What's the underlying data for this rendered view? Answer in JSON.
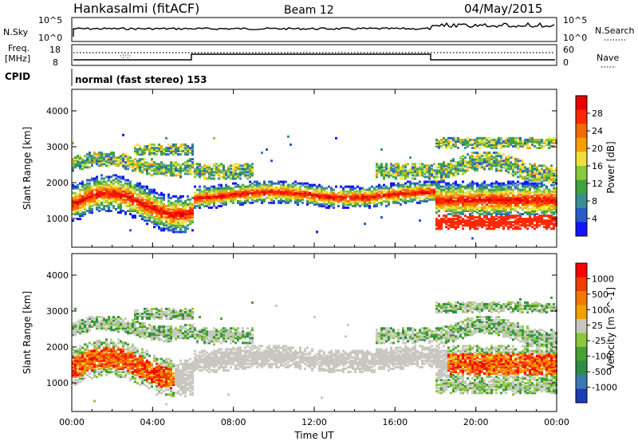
{
  "header": {
    "title": "Hankasalmi (fitACF)",
    "beam": "Beam 12",
    "date": "04/May/2015"
  },
  "noise_panel": {
    "left_label": "N.Sky",
    "right_label": "N.Search",
    "left_ticks": [
      "10^5",
      "10^0"
    ],
    "right_ticks": [
      "10^5",
      "10^0"
    ]
  },
  "freq_panel": {
    "left_label_1": "Freq.",
    "left_label_2": "[MHz]",
    "left_ticks": [
      "18",
      "8"
    ],
    "right_ticks": [
      "60",
      "0"
    ],
    "right_label": "Nave"
  },
  "cpid": {
    "label": "CPID",
    "mode": "normal (fast stereo) 153"
  },
  "chart_data": [
    {
      "type": "heatmap",
      "name": "power",
      "xlabel": "",
      "ylabel": "Slant Range [km]",
      "x_ticks": [
        "00:00",
        "04:00",
        "08:00",
        "12:00",
        "16:00",
        "20:00",
        "00:00"
      ],
      "y_ticks": [
        1000,
        2000,
        3000,
        4000
      ],
      "ylim": [
        200,
        4600
      ],
      "colorbar": {
        "label": "Power [dB]",
        "ticks": [
          "28",
          "24",
          "20",
          "16",
          "12",
          "8",
          "4"
        ],
        "colors": [
          "#1414ff",
          "#2a5cc9",
          "#3c8c96",
          "#3fa33f",
          "#8ac83c",
          "#f0e03c",
          "#f5a000",
          "#f56a00",
          "#ff2800",
          "#e60000"
        ]
      }
    },
    {
      "type": "heatmap",
      "name": "velocity",
      "xlabel": "Time UT",
      "ylabel": "Slant Range [km]",
      "x_ticks": [
        "00:00",
        "04:00",
        "08:00",
        "12:00",
        "16:00",
        "20:00",
        "00:00"
      ],
      "y_ticks": [
        1000,
        2000,
        3000,
        4000
      ],
      "ylim": [
        200,
        4600
      ],
      "colorbar": {
        "label": "Velocity [m s^-1]",
        "ticks": [
          "1000",
          "500",
          "100",
          "25",
          "-25",
          "-100",
          "-500",
          "-1000"
        ],
        "colors": [
          "#1e3cb4",
          "#3c78b4",
          "#2d8c46",
          "#46a032",
          "#8cc83c",
          "#c8c8c0",
          "#f0a000",
          "#f57800",
          "#f03c00",
          "#ff0000"
        ]
      }
    }
  ],
  "colors": {
    "ground_scatter": "#c8c8c0"
  }
}
